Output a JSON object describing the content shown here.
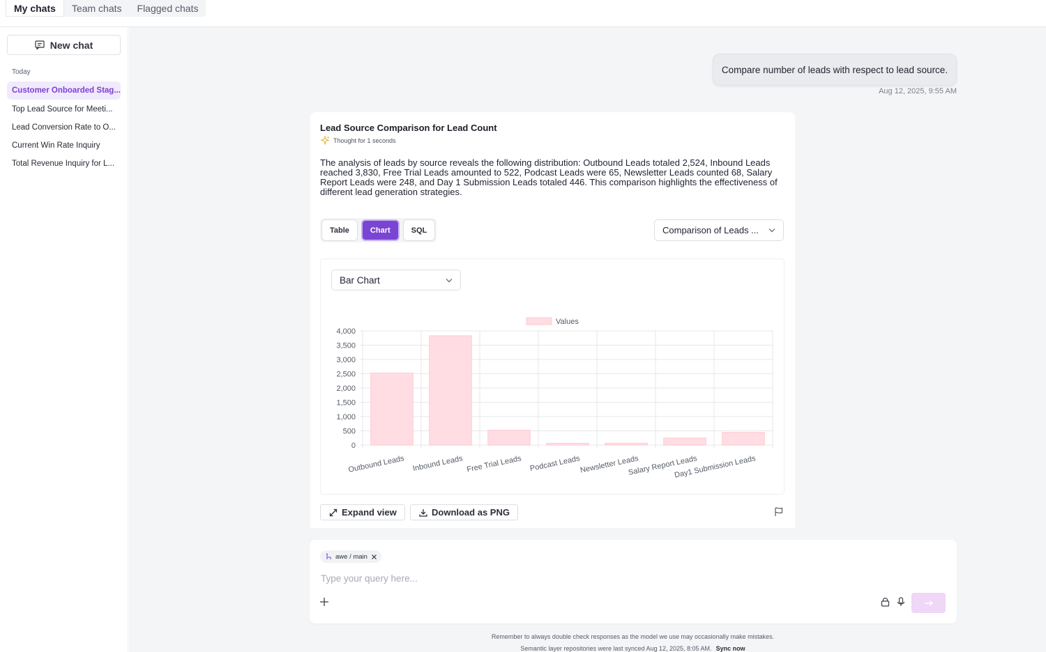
{
  "top_tabs": [
    {
      "label": "My chats",
      "active": true
    },
    {
      "label": "Team chats",
      "active": false
    },
    {
      "label": "Flagged chats",
      "active": false
    }
  ],
  "sidebar": {
    "new_chat_label": "New chat",
    "section_label": "Today",
    "history": [
      {
        "label": "Customer Onboarded Stag...",
        "active": true
      },
      {
        "label": "Top Lead Source for Meeti...",
        "active": false
      },
      {
        "label": "Lead Conversion Rate to O...",
        "active": false
      },
      {
        "label": "Current Win Rate Inquiry",
        "active": false
      },
      {
        "label": "Total Revenue Inquiry for L...",
        "active": false
      }
    ]
  },
  "conversation": {
    "user_message": "Compare number of leads with respect to lead source.",
    "user_timestamp": "Aug 12, 2025, 9:55 AM",
    "response": {
      "title": "Lead Source Comparison for Lead Count",
      "thought_label": "Thought for 1 seconds",
      "summary": "The analysis of leads by source reveals the following distribution: Outbound Leads totaled 2,524, Inbound Leads reached 3,830, Free Trial Leads amounted to 522, Podcast Leads were 65, Newsletter Leads counted 68, Salary Report Leads were 248, and Day 1 Submission Leads totaled 446. This comparison highlights the effectiveness of different lead generation strategies.",
      "view_tabs": [
        {
          "label": "Table",
          "active": false
        },
        {
          "label": "Chart",
          "active": true
        },
        {
          "label": "SQL",
          "active": false
        }
      ],
      "comparison_select": "Comparison of Leads ...",
      "chart_type_select": "Bar Chart",
      "expand_label": "Expand view",
      "download_label": "Download as PNG"
    }
  },
  "chart_data": {
    "type": "bar",
    "categories": [
      "Outbound Leads",
      "Inbound Leads",
      "Free Trial Leads",
      "Podcast Leads",
      "Newsletter Leads",
      "Salary Report Leads",
      "Day1 Submission Leads"
    ],
    "series": [
      {
        "name": "Values",
        "values": [
          2524,
          3830,
          522,
          65,
          68,
          248,
          446
        ]
      }
    ],
    "ylim": [
      0,
      4000
    ],
    "yticks": [
      0,
      500,
      1000,
      1500,
      2000,
      2500,
      3000,
      3500,
      4000
    ],
    "ytick_labels": [
      "0",
      "500",
      "1,000",
      "1,500",
      "2,000",
      "2,500",
      "3,000",
      "3,500",
      "4,000"
    ],
    "legend_position": "top-center",
    "grid": true,
    "bar_color": "#ffdde3",
    "bar_border_color": "#ffc9d3"
  },
  "composer": {
    "repo_chip": "awe / main",
    "placeholder": "Type your query here..."
  },
  "footer": {
    "disclaimer": "Remember to always double check responses as the model we use may occasionally make mistakes.",
    "sync_text": "Semantic layer repositories were last synced Aug 12, 2025, 8:05 AM.",
    "sync_link": "Sync now"
  },
  "colors": {
    "accent": "#7b45d4",
    "active_history_bg": "#f1eafc",
    "send_button": "#f0d6f7"
  }
}
